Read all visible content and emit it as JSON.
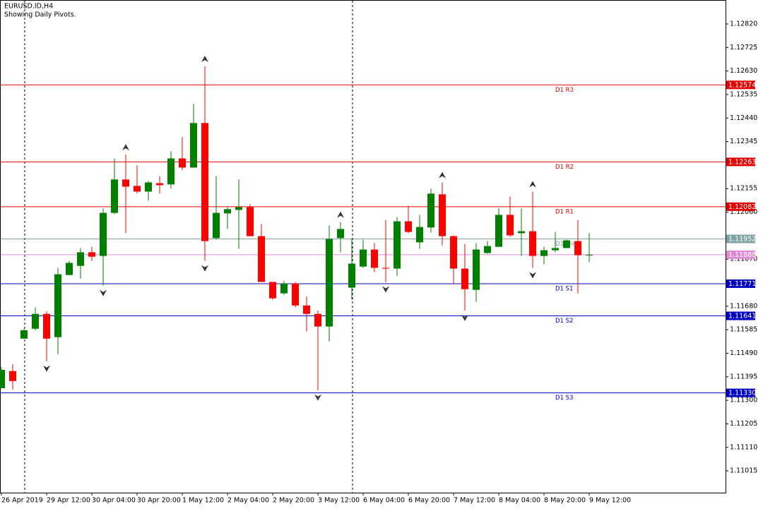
{
  "chart_data": {
    "type": "candlestick",
    "title": "EURUSD.ID,H4",
    "subtitle": "Showing Daily Pivots.",
    "categories": [
      "26 Apr 2019",
      null,
      null,
      null,
      "29 Apr 12:00",
      null,
      null,
      null,
      "30 Apr 04:00",
      null,
      null,
      null,
      "30 Apr 20:00",
      null,
      null,
      null,
      "1 May 12:00",
      null,
      null,
      null,
      "2 May 04:00",
      null,
      null,
      null,
      "2 May 20:00",
      null,
      null,
      null,
      "3 May 12:00",
      null,
      null,
      null,
      "6 May 04:00",
      null,
      null,
      null,
      "6 May 20:00",
      null,
      null,
      null,
      "7 May 12:00",
      null,
      null,
      null,
      "8 May 04:00",
      null,
      null,
      null,
      "8 May 20:00",
      null,
      null,
      null,
      "9 May 12:00"
    ],
    "open": [
      1.11349,
      1.11418,
      1.11549,
      1.11589,
      1.11649,
      1.11555,
      1.11806,
      1.11843,
      1.11898,
      1.11883,
      1.12057,
      1.12192,
      1.12166,
      1.12143,
      1.12177,
      1.12172,
      1.12277,
      1.1224,
      1.1242,
      1.11955,
      1.12055,
      1.12069,
      1.1208,
      1.11963,
      1.11778,
      1.11732,
      1.11772,
      1.11683,
      1.11649,
      1.11598,
      1.11955,
      1.11755,
      1.1184,
      1.11909,
      1.11835,
      1.11832,
      1.12023,
      1.11938,
      1.11998,
      1.12132,
      1.11963,
      1.11832,
      1.11746,
      1.11895,
      1.1192,
      1.12049,
      1.11975,
      1.11983,
      1.11883,
      1.11906,
      1.11915,
      1.11943,
      1.11886
    ],
    "high": [
      1.11435,
      1.11446,
      1.11589,
      1.11675,
      1.1166,
      1.11835,
      1.11863,
      1.11915,
      1.1192,
      1.12075,
      1.12277,
      1.12292,
      1.12249,
      1.12186,
      1.12206,
      1.12306,
      1.12363,
      1.12497,
      1.12649,
      1.12206,
      1.12083,
      1.12192,
      1.12092,
      1.12012,
      1.11778,
      1.11783,
      1.11778,
      1.1172,
      1.11663,
      1.12006,
      1.1202,
      1.11955,
      1.11949,
      1.11935,
      1.12029,
      1.1204,
      1.12086,
      1.12049,
      1.12155,
      1.1218,
      1.11966,
      1.11932,
      1.11935,
      1.11943,
      1.12077,
      1.12123,
      1.12075,
      1.12143,
      1.1192,
      1.1198,
      1.11949,
      1.12029,
      1.11975
    ],
    "low": [
      1.11349,
      1.11343,
      1.11549,
      1.11583,
      1.11458,
      1.11486,
      1.11806,
      1.11792,
      1.11863,
      1.11763,
      1.12052,
      1.11975,
      1.12135,
      1.12106,
      1.12135,
      1.12155,
      1.12229,
      1.1224,
      1.11863,
      1.11949,
      1.11992,
      1.11912,
      1.11963,
      1.11778,
      1.11706,
      1.11726,
      1.11675,
      1.11578,
      1.11341,
      1.11538,
      1.11898,
      1.11706,
      1.11835,
      1.11818,
      1.11778,
      1.11803,
      1.11975,
      1.11912,
      1.11978,
      1.11926,
      1.11769,
      1.11663,
      1.11698,
      1.11892,
      1.1192,
      1.1196,
      1.11883,
      1.11835,
      1.11849,
      1.11898,
      1.11915,
      1.11732,
      1.11858
    ],
    "close": [
      1.11423,
      1.11378,
      1.11583,
      1.11649,
      1.11549,
      1.11809,
      1.11855,
      1.11898,
      1.1188,
      1.12057,
      1.12192,
      1.12163,
      1.12143,
      1.1218,
      1.12169,
      1.12277,
      1.1224,
      1.1242,
      1.11943,
      1.12057,
      1.12072,
      1.1208,
      1.11963,
      1.11778,
      1.11712,
      1.11772,
      1.11683,
      1.11649,
      1.11598,
      1.11952,
      1.11992,
      1.11852,
      1.11909,
      1.11835,
      1.11832,
      1.12023,
      1.1198,
      1.12,
      1.12135,
      1.11963,
      1.11832,
      1.11749,
      1.11909,
      1.11923,
      1.12049,
      1.11966,
      1.11983,
      1.11883,
      1.11906,
      1.11915,
      1.11946,
      1.11886,
      1.11888
    ],
    "up_color": "#008000",
    "down_color": "#ff0000",
    "ylim": [
      1.10927,
      1.12914
    ],
    "yticks": [
      {
        "value": 1.1282,
        "label": "1.12820"
      },
      1.12725,
      {
        "value": 1.1263,
        "label": "1.12630"
      },
      1.12535,
      {
        "value": 1.1244,
        "label": "1.12440"
      },
      1.12345,
      1.12155,
      {
        "value": 1.1206,
        "label": "1.12060"
      },
      {
        "value": 1.1187,
        "label": "1.11870"
      },
      {
        "value": 1.1168,
        "label": "1.11680"
      },
      1.11585,
      {
        "value": 1.1149,
        "label": "1.11490"
      },
      1.11395,
      {
        "value": 1.113,
        "label": "1.11300"
      },
      1.11205,
      {
        "value": 1.1111,
        "label": "1.11110"
      },
      1.11015
    ],
    "levels": [
      {
        "name": "D1 R3",
        "value": 1.12574,
        "color": "#e00000"
      },
      {
        "name": "D1 R2",
        "value": 1.12263,
        "color": "#e00000"
      },
      {
        "name": "D1 R1",
        "value": 1.12082,
        "color": "#e00000"
      },
      {
        "name": "D1 Pivot",
        "value": 1.11952,
        "color": "#7fa3a3"
      },
      {
        "name": "D1 S1",
        "value": 1.11771,
        "color": "#0000c0"
      },
      {
        "name": "D1 S2",
        "value": 1.11641,
        "color": "#0000c0"
      },
      {
        "name": "D1 S3",
        "value": {
          "value": 1.1133,
          "label": "1.11330"
        },
        "color": "#0000c0"
      }
    ],
    "bid": 1.11888,
    "bid_color": "#e08ad4"
  }
}
